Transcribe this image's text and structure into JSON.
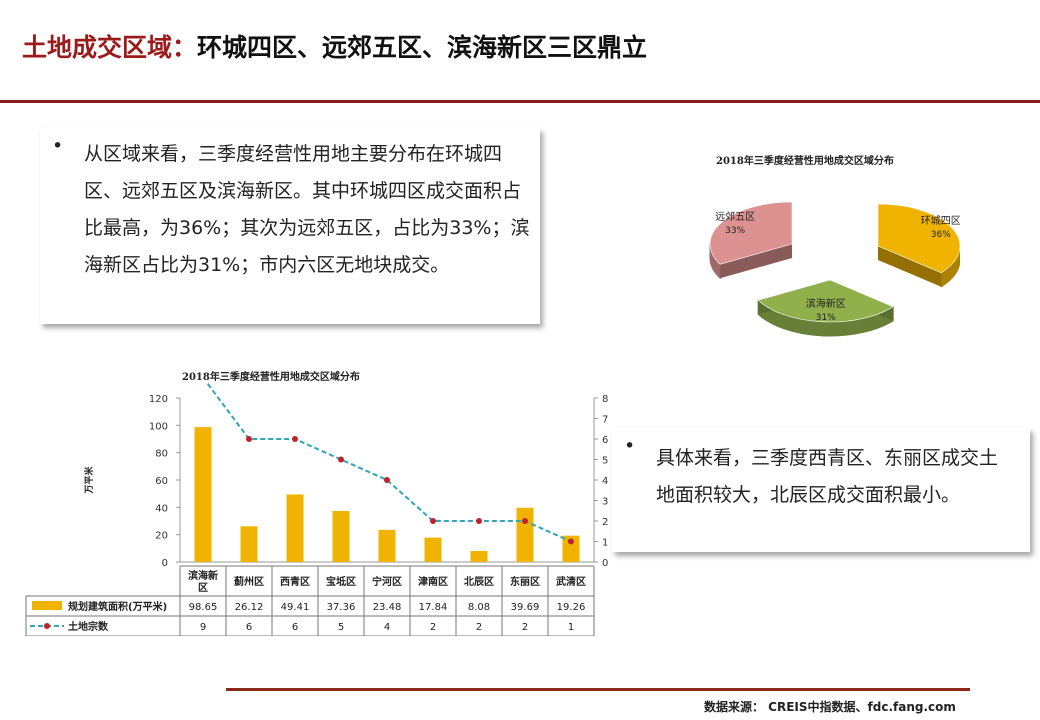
{
  "header": {
    "title_red": "土地成交区域：",
    "title_black": "环城四区、远郊五区、滨海新区三区鼎立"
  },
  "summary": {
    "bullet": "•",
    "text": "从区域来看，三季度经营性用地主要分布在环城四区、远郊五区及滨海新区。其中环城四区成交面积占比最高，为36%；其次为远郊五区，占比为33%；滨海新区占比为31%；市内六区无地块成交。"
  },
  "detail": {
    "bullet": "•",
    "text": "具体来看，三季度西青区、东丽区成交土地面积较大，北辰区成交面积最小。"
  },
  "pie_title": "2018年三季度经营性用地成交区域分布",
  "bar_title": "2018年三季度经营性用地成交区域分布",
  "source": "数据来源： CREIS中指数据、fdc.fang.com",
  "colors": {
    "title_red": "#9B1B1B",
    "bar": "#F0B400",
    "line": "#2FA5B5",
    "marker": "#C0222A",
    "pie_env": "#F0B400",
    "pie_bin": "#8FB04B",
    "pie_suburb": "#DC9290"
  },
  "chart_data": [
    {
      "type": "pie",
      "title": "2018年三季度经营性用地成交区域分布",
      "slices": [
        {
          "label": "环城四区",
          "value": 36,
          "value_label": "36%",
          "color": "#F0B400"
        },
        {
          "label": "滨海新区",
          "value": 31,
          "value_label": "31%",
          "color": "#8FB04B"
        },
        {
          "label": "远郊五区",
          "value": 33,
          "value_label": "33%",
          "color": "#DC9290"
        }
      ]
    },
    {
      "type": "bar",
      "title": "2018年三季度经营性用地成交区域分布",
      "categories": [
        "滨海新区",
        "蓟州区",
        "西青区",
        "宝坻区",
        "宁河区",
        "津南区",
        "北辰区",
        "东丽区",
        "武清区"
      ],
      "series": [
        {
          "name": "规划建筑面积(万平米)",
          "type": "bar",
          "axis": "left",
          "values": [
            98.65,
            26.12,
            49.41,
            37.36,
            23.48,
            17.84,
            8.08,
            39.69,
            19.26
          ],
          "value_labels": [
            "98.65",
            "26.12",
            "49.41",
            "37.36",
            "23.48",
            "17.84",
            "8.08",
            "39.69",
            "19.26"
          ]
        },
        {
          "name": "土地宗数",
          "type": "line",
          "axis": "right",
          "values": [
            9,
            6,
            6,
            5,
            4,
            2,
            2,
            2,
            1
          ],
          "value_labels": [
            "9",
            "6",
            "6",
            "5",
            "4",
            "2",
            "2",
            "2",
            "1"
          ]
        }
      ],
      "ylabel": "万平米",
      "ylim": [
        0,
        120
      ],
      "yticks": [
        "0",
        "20",
        "40",
        "60",
        "80",
        "100",
        "120"
      ],
      "y2lim": [
        0,
        8
      ],
      "y2ticks": [
        "0",
        "1",
        "2",
        "3",
        "4",
        "5",
        "6",
        "7",
        "8"
      ],
      "legend": "data-table"
    }
  ]
}
